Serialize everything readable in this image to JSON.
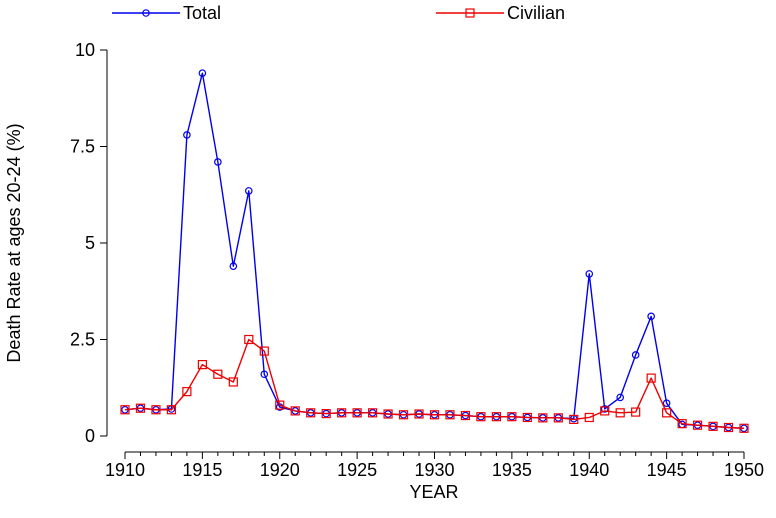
{
  "chart_data": {
    "type": "line",
    "title": "",
    "xlabel": "YEAR",
    "ylabel": "Death Rate at ages 20-24 (%)",
    "xlim": [
      1910,
      1950
    ],
    "ylim": [
      0,
      10
    ],
    "x_ticks": [
      1910,
      1915,
      1920,
      1925,
      1930,
      1935,
      1940,
      1945,
      1950
    ],
    "y_ticks": [
      0,
      2.5,
      5,
      7.5,
      10
    ],
    "x_tick_labels": [
      "1910",
      "1915",
      "1920",
      "1925",
      "1930",
      "1935",
      "1940",
      "1945",
      "1950"
    ],
    "y_tick_labels": [
      "0",
      "2.5",
      "5",
      "7.5",
      "10"
    ],
    "grid": false,
    "legend_position": "top",
    "x": [
      1910,
      1911,
      1912,
      1913,
      1914,
      1915,
      1916,
      1917,
      1918,
      1919,
      1920,
      1921,
      1922,
      1923,
      1924,
      1925,
      1926,
      1927,
      1928,
      1929,
      1930,
      1931,
      1932,
      1933,
      1934,
      1935,
      1936,
      1937,
      1938,
      1939,
      1940,
      1941,
      1942,
      1943,
      1944,
      1945,
      1946,
      1947,
      1948,
      1949,
      1950
    ],
    "series": [
      {
        "name": "Total",
        "color": "#0000ee",
        "marker": "circle",
        "values": [
          0.68,
          0.72,
          0.68,
          0.7,
          7.8,
          9.4,
          7.1,
          4.4,
          6.35,
          1.6,
          0.75,
          0.65,
          0.6,
          0.58,
          0.6,
          0.6,
          0.6,
          0.57,
          0.55,
          0.57,
          0.55,
          0.55,
          0.53,
          0.5,
          0.5,
          0.5,
          0.48,
          0.47,
          0.47,
          0.45,
          4.2,
          0.7,
          1.0,
          2.1,
          3.1,
          0.85,
          0.3,
          0.28,
          0.25,
          0.22,
          0.2
        ]
      },
      {
        "name": "Civilian",
        "color": "#ee0000",
        "marker": "square",
        "values": [
          0.68,
          0.72,
          0.68,
          0.68,
          1.15,
          1.85,
          1.6,
          1.4,
          2.5,
          2.2,
          0.8,
          0.65,
          0.6,
          0.58,
          0.6,
          0.6,
          0.6,
          0.57,
          0.55,
          0.57,
          0.55,
          0.55,
          0.53,
          0.5,
          0.5,
          0.5,
          0.48,
          0.47,
          0.47,
          0.43,
          0.48,
          0.65,
          0.6,
          0.62,
          1.5,
          0.6,
          0.32,
          0.28,
          0.25,
          0.22,
          0.2
        ]
      }
    ]
  }
}
